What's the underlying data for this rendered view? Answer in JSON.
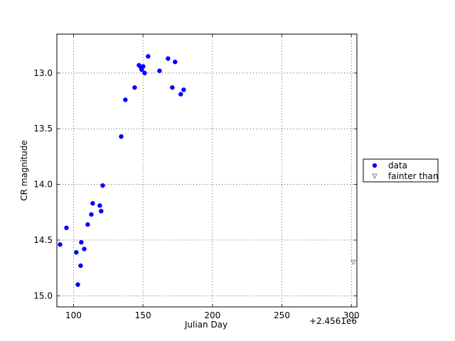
{
  "chart_data": {
    "type": "scatter",
    "xlabel": "Julian Day",
    "ylabel": "CR magnitude",
    "x_offset_label": "+2.4561e6",
    "xlim": [
      88,
      304
    ],
    "ylim": [
      15.1,
      12.65
    ],
    "xticks": [
      100,
      150,
      200,
      250,
      300
    ],
    "yticks": [
      {
        "value": 13,
        "label": "13.0"
      },
      13.5,
      {
        "value": 14,
        "label": "14.0"
      },
      14.5,
      {
        "value": 15,
        "label": "15.0"
      }
    ],
    "grid": true,
    "legend_position": "right",
    "series": [
      {
        "name": "data",
        "color": "#0000ff",
        "marker": "circle",
        "x": [
          90.3,
          94.9,
          102.0,
          103.1,
          105.1,
          105.6,
          107.7,
          110.2,
          112.8,
          113.8,
          118.9,
          119.9,
          121.0,
          134.3,
          137.3,
          144.0,
          147.1,
          148.6,
          149.1,
          150.1,
          151.2,
          153.7,
          161.9,
          168.0,
          171.1,
          173.1,
          177.2,
          179.3
        ],
        "values": [
          14.54,
          14.39,
          14.61,
          14.9,
          14.73,
          14.52,
          14.58,
          14.36,
          14.27,
          14.17,
          14.19,
          14.24,
          14.01,
          13.57,
          13.24,
          13.13,
          12.93,
          12.95,
          12.97,
          12.94,
          13.0,
          12.85,
          12.98,
          12.87,
          13.13,
          12.9,
          13.19,
          13.15
        ]
      },
      {
        "name": "fainter than",
        "color": "#808080",
        "marker": "triangle-down",
        "x": [
          301.5
        ],
        "values": [
          14.7
        ]
      }
    ]
  }
}
